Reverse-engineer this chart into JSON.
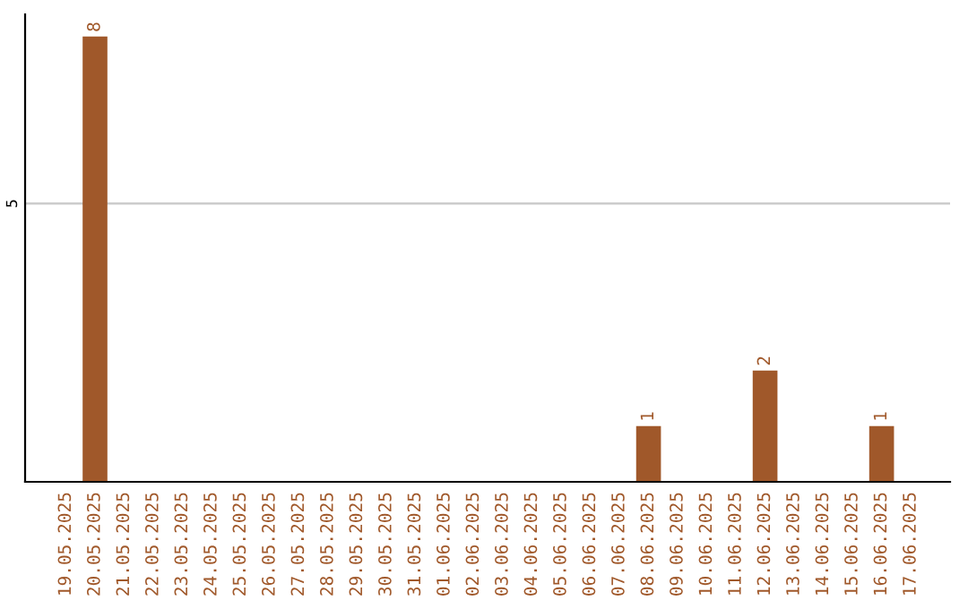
{
  "chart_data": {
    "type": "bar",
    "categories": [
      "19.05.2025",
      "20.05.2025",
      "21.05.2025",
      "22.05.2025",
      "23.05.2025",
      "24.05.2025",
      "25.05.2025",
      "26.05.2025",
      "27.05.2025",
      "28.05.2025",
      "29.05.2025",
      "30.05.2025",
      "31.05.2025",
      "01.06.2025",
      "02.06.2025",
      "03.06.2025",
      "04.06.2025",
      "05.06.2025",
      "06.06.2025",
      "07.06.2025",
      "08.06.2025",
      "09.06.2025",
      "10.06.2025",
      "11.06.2025",
      "12.06.2025",
      "13.06.2025",
      "14.06.2025",
      "15.06.2025",
      "16.06.2025",
      "17.06.2025"
    ],
    "values": [
      0,
      8,
      0,
      0,
      0,
      0,
      0,
      0,
      0,
      0,
      0,
      0,
      0,
      0,
      0,
      0,
      0,
      0,
      0,
      0,
      1,
      0,
      0,
      0,
      2,
      0,
      0,
      0,
      1,
      0
    ],
    "value_labels": [
      null,
      "8",
      null,
      null,
      null,
      null,
      null,
      null,
      null,
      null,
      null,
      null,
      null,
      null,
      null,
      null,
      null,
      null,
      null,
      null,
      "1",
      null,
      null,
      null,
      "2",
      null,
      null,
      null,
      "1",
      null
    ],
    "color": "#a0582a",
    "ylim": [
      0,
      8.4
    ],
    "yticks": [
      5
    ],
    "grid": "y"
  }
}
